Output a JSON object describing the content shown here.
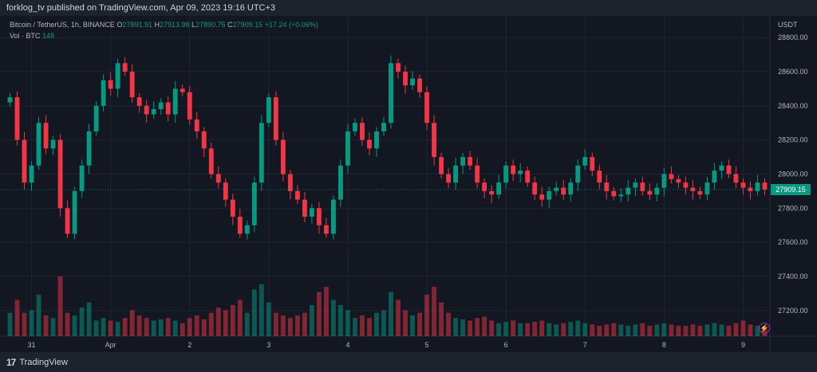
{
  "header": {
    "publish_line": "forklog_tv published on TradingView.com, Apr 09, 2023 19:16 UTC+3"
  },
  "legend": {
    "symbol": "Bitcoin / TetherUS, 1h, BINANCE",
    "o_label": "O",
    "o_value": "27891.91",
    "h_label": "H",
    "h_value": "27913.98",
    "l_label": "L",
    "l_value": "27890.75",
    "c_label": "C",
    "c_value": "27909.15",
    "change": "+17.24 (+0.06%)",
    "vol_label": "Vol · BTC",
    "vol_value": "148"
  },
  "last_price": "27909.15",
  "footer": {
    "brand": "TradingView",
    "logo_glyph": "17"
  },
  "colors": {
    "up": "#089981",
    "down": "#f23645",
    "background": "#131722",
    "grid": "#1f2430",
    "text": "#b2b5be"
  },
  "chart_data": {
    "type": "candlestick",
    "axis_unit": "USDT",
    "y_ticks": [
      27200,
      27400,
      27600,
      27800,
      28000,
      28200,
      28400,
      28600,
      28800
    ],
    "ylim": [
      27050,
      28880
    ],
    "x_ticks": [
      {
        "label": "31",
        "bar": 3
      },
      {
        "label": "Apr",
        "bar": 14
      },
      {
        "label": "2",
        "bar": 25
      },
      {
        "label": "3",
        "bar": 36
      },
      {
        "label": "4",
        "bar": 47
      },
      {
        "label": "5",
        "bar": 58
      },
      {
        "label": "6",
        "bar": 69
      },
      {
        "label": "7",
        "bar": 80
      },
      {
        "label": "8",
        "bar": 91
      },
      {
        "label": "9",
        "bar": 102
      }
    ],
    "closes": [
      28450,
      28200,
      27950,
      28050,
      28300,
      28150,
      28200,
      27800,
      27650,
      27900,
      28050,
      28250,
      28400,
      28550,
      28500,
      28650,
      28600,
      28450,
      28400,
      28350,
      28380,
      28420,
      28350,
      28500,
      28480,
      28320,
      28250,
      28150,
      28000,
      27950,
      27850,
      27750,
      27650,
      27700,
      27950,
      28300,
      28450,
      28200,
      28000,
      27900,
      27850,
      27750,
      27800,
      27700,
      27650,
      27850,
      28050,
      28250,
      28300,
      28200,
      28150,
      28250,
      28300,
      28650,
      28600,
      28520,
      28560,
      28480,
      28300,
      28100,
      28000,
      27950,
      28050,
      28100,
      28050,
      27950,
      27900,
      27880,
      27950,
      28050,
      28000,
      28020,
      27950,
      27880,
      27850,
      27900,
      27920,
      27880,
      27950,
      28050,
      28100,
      28020,
      27950,
      27900,
      27870,
      27880,
      27920,
      27950,
      27900,
      27880,
      27920,
      28000,
      27970,
      27950,
      27920,
      27900,
      27880,
      27950,
      28020,
      28050,
      28000,
      27950,
      27920,
      27900,
      27950,
      27909.15
    ],
    "volumes": [
      900,
      1400,
      900,
      1000,
      1600,
      800,
      700,
      2300,
      900,
      800,
      1100,
      1300,
      600,
      700,
      600,
      550,
      700,
      1000,
      800,
      700,
      600,
      650,
      700,
      600,
      500,
      700,
      800,
      650,
      900,
      1100,
      1000,
      1200,
      1400,
      900,
      1800,
      2000,
      1300,
      900,
      800,
      700,
      800,
      900,
      1200,
      1700,
      1900,
      1400,
      1200,
      1000,
      700,
      800,
      700,
      900,
      1000,
      1700,
      1400,
      1000,
      800,
      900,
      1600,
      1900,
      1300,
      900,
      700,
      650,
      600,
      700,
      750,
      600,
      500,
      550,
      600,
      500,
      500,
      550,
      600,
      500,
      450,
      500,
      550,
      600,
      500,
      450,
      400,
      450,
      500,
      450,
      400,
      450,
      500,
      400,
      450,
      500,
      450,
      400,
      400,
      450,
      400,
      450,
      500,
      450,
      400,
      500,
      600,
      450,
      400,
      400
    ]
  }
}
